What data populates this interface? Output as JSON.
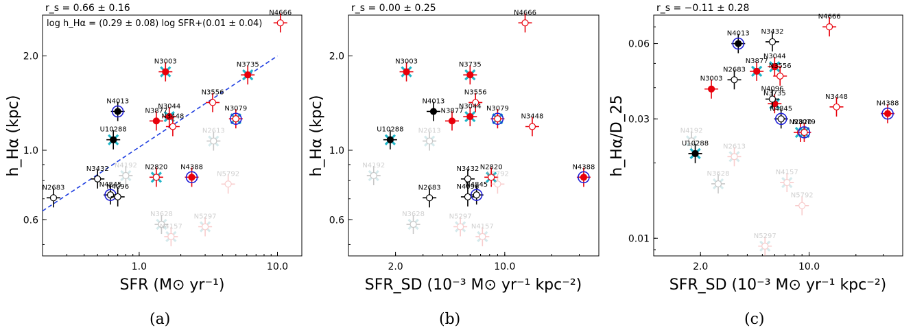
{
  "captions": [
    "(a)",
    "(b)",
    "(c)"
  ],
  "colors": {
    "red": "#e8000b",
    "black": "#000000",
    "blue": "#1f1fd6",
    "cyan": "#1fb5c8",
    "fit_line": "#1f3fe0",
    "faint_gray": "#9a9a9a",
    "faint_red": "#f4a3a3"
  },
  "chart_data": [
    {
      "type": "scatter",
      "panel": "a",
      "stat": "r_s = 0.66 ± 0.16",
      "fit_text": "log h_Hα = (0.29 ± 0.08) log SFR+(0.01 ± 0.04)",
      "fit_line": {
        "x": [
          0.2,
          10.0
        ],
        "y": [
          0.64,
          2.0
        ]
      },
      "xlabel": "SFR (M⊙ yr⁻¹)",
      "ylabel": "h_Hα (kpc)",
      "xscale": "log",
      "yscale": "log",
      "xlim": [
        0.2,
        15.0
      ],
      "ylim": [
        0.46,
        2.7
      ],
      "xticks": [
        {
          "v": 1.0,
          "label": "1.0"
        },
        {
          "v": 10.0,
          "label": "10.0"
        }
      ],
      "yticks": [
        {
          "v": 0.6,
          "label": "0.6"
        },
        {
          "v": 1.0,
          "label": "1.0"
        },
        {
          "v": 2.0,
          "label": "2.0"
        }
      ],
      "points": [
        {
          "name": "N4666",
          "x": 10.5,
          "y": 2.55,
          "c": "red",
          "m": "open",
          "faint": false
        },
        {
          "name": "N3003",
          "x": 1.55,
          "y": 1.78,
          "c": "red",
          "m": "fill",
          "x2": true,
          "faint": false
        },
        {
          "name": "N3735",
          "x": 6.1,
          "y": 1.74,
          "c": "red",
          "m": "fill",
          "x2": true,
          "faint": false
        },
        {
          "name": "N3556",
          "x": 3.4,
          "y": 1.42,
          "c": "red",
          "m": "open",
          "faint": false
        },
        {
          "name": "N4013",
          "x": 0.7,
          "y": 1.33,
          "c": "black",
          "m": "fill",
          "ring": "blue",
          "faint": false
        },
        {
          "name": "N3044",
          "x": 1.65,
          "y": 1.28,
          "c": "red",
          "m": "fill",
          "x2": true,
          "faint": false
        },
        {
          "name": "N3079",
          "x": 5.0,
          "y": 1.26,
          "c": "red",
          "m": "open",
          "ring": "blue",
          "x2": true,
          "faint": false
        },
        {
          "name": "N3877",
          "x": 1.33,
          "y": 1.24,
          "c": "red",
          "m": "fill",
          "faint": false
        },
        {
          "name": "N3448",
          "x": 1.75,
          "y": 1.19,
          "c": "red",
          "m": "open",
          "faint": false
        },
        {
          "name": "U10288",
          "x": 0.65,
          "y": 1.08,
          "c": "black",
          "m": "fill",
          "x2": true,
          "faint": false
        },
        {
          "name": "N2613",
          "x": 3.45,
          "y": 1.07,
          "c": "gray",
          "m": "open",
          "x2": true,
          "faint": true
        },
        {
          "name": "N4192",
          "x": 0.8,
          "y": 0.83,
          "c": "gray",
          "m": "open",
          "x2": true,
          "faint": true
        },
        {
          "name": "N3432",
          "x": 0.5,
          "y": 0.81,
          "c": "black",
          "m": "open",
          "faint": false
        },
        {
          "name": "N2820",
          "x": 1.33,
          "y": 0.82,
          "c": "red",
          "m": "open",
          "x2": true,
          "faint": false
        },
        {
          "name": "N4388",
          "x": 2.4,
          "y": 0.82,
          "c": "red",
          "m": "fill",
          "ring": "blue",
          "faint": false
        },
        {
          "name": "N5792",
          "x": 4.4,
          "y": 0.78,
          "c": "pink",
          "m": "open",
          "faint": true
        },
        {
          "name": "N4845",
          "x": 0.62,
          "y": 0.72,
          "c": "black",
          "m": "open",
          "ring": "blue",
          "faint": false
        },
        {
          "name": "N4096",
          "x": 0.7,
          "y": 0.71,
          "c": "black",
          "m": "open",
          "faint": false
        },
        {
          "name": "N2683",
          "x": 0.24,
          "y": 0.705,
          "c": "black",
          "m": "open",
          "faint": false
        },
        {
          "name": "N3628",
          "x": 1.45,
          "y": 0.58,
          "c": "gray",
          "m": "open",
          "x2": true,
          "faint": true
        },
        {
          "name": "N5297",
          "x": 3.0,
          "y": 0.57,
          "c": "pink",
          "m": "open",
          "x2": true,
          "faint": true
        },
        {
          "name": "N4157",
          "x": 1.7,
          "y": 0.53,
          "c": "pink",
          "m": "open",
          "x2": true,
          "faint": true
        }
      ]
    },
    {
      "type": "scatter",
      "panel": "b",
      "stat": "r_s = 0.00 ± 0.25",
      "xlabel": "SFR_SD (10⁻³ M⊙ yr⁻¹ kpc⁻²)",
      "ylabel": "h_Hα (kpc)",
      "xscale": "log",
      "yscale": "log",
      "xlim": [
        1.0,
        40.0
      ],
      "ylim": [
        0.46,
        2.7
      ],
      "xticks": [
        {
          "v": 2.0,
          "label": "2.0"
        },
        {
          "v": 10.0,
          "label": "10.0"
        }
      ],
      "yticks": [
        {
          "v": 0.6,
          "label": "0.6"
        },
        {
          "v": 1.0,
          "label": "1.0"
        },
        {
          "v": 2.0,
          "label": "2.0"
        }
      ],
      "points": [
        {
          "name": "N4666",
          "x": 13.5,
          "y": 2.55,
          "c": "red",
          "m": "open",
          "faint": false
        },
        {
          "name": "N3003",
          "x": 2.35,
          "y": 1.78,
          "c": "red",
          "m": "fill",
          "x2": true,
          "faint": false
        },
        {
          "name": "N3735",
          "x": 6.0,
          "y": 1.74,
          "c": "red",
          "m": "fill",
          "x2": true,
          "faint": false
        },
        {
          "name": "N3556",
          "x": 6.5,
          "y": 1.42,
          "c": "red",
          "m": "open",
          "faint": false
        },
        {
          "name": "N4013",
          "x": 3.5,
          "y": 1.33,
          "c": "black",
          "m": "fill",
          "faint": false
        },
        {
          "name": "N3877",
          "x": 4.6,
          "y": 1.24,
          "c": "red",
          "m": "fill",
          "faint": false
        },
        {
          "name": "N3044",
          "x": 6.0,
          "y": 1.28,
          "c": "red",
          "m": "fill",
          "x2": true,
          "faint": false
        },
        {
          "name": "N3079",
          "x": 9.0,
          "y": 1.26,
          "c": "red",
          "m": "open",
          "ring": "blue",
          "x2": true,
          "faint": false
        },
        {
          "name": "N3448",
          "x": 15.0,
          "y": 1.19,
          "c": "red",
          "m": "open",
          "faint": false
        },
        {
          "name": "U10288",
          "x": 1.85,
          "y": 1.08,
          "c": "black",
          "m": "fill",
          "x2": true,
          "faint": false
        },
        {
          "name": "N2613",
          "x": 3.3,
          "y": 1.07,
          "c": "gray",
          "m": "open",
          "x2": true,
          "faint": true
        },
        {
          "name": "N4192",
          "x": 1.45,
          "y": 0.83,
          "c": "gray",
          "m": "open",
          "x2": true,
          "faint": true
        },
        {
          "name": "N3432",
          "x": 5.8,
          "y": 0.81,
          "c": "black",
          "m": "open",
          "faint": false
        },
        {
          "name": "N2820",
          "x": 8.2,
          "y": 0.82,
          "c": "red",
          "m": "open",
          "x2": true,
          "faint": false
        },
        {
          "name": "N5792",
          "x": 9.0,
          "y": 0.78,
          "c": "pink",
          "m": "open",
          "faint": true
        },
        {
          "name": "N4388",
          "x": 32.0,
          "y": 0.82,
          "c": "red",
          "m": "fill",
          "ring": "blue",
          "faint": false
        },
        {
          "name": "N4096",
          "x": 5.8,
          "y": 0.71,
          "c": "black",
          "m": "open",
          "faint": false
        },
        {
          "name": "N4845",
          "x": 6.6,
          "y": 0.72,
          "c": "black",
          "m": "open",
          "ring": "blue",
          "faint": false
        },
        {
          "name": "N2683",
          "x": 3.3,
          "y": 0.705,
          "c": "black",
          "m": "open",
          "faint": false
        },
        {
          "name": "N3628",
          "x": 2.6,
          "y": 0.58,
          "c": "gray",
          "m": "open",
          "x2": true,
          "faint": true
        },
        {
          "name": "N5297",
          "x": 5.2,
          "y": 0.57,
          "c": "pink",
          "m": "open",
          "x2": true,
          "faint": true
        },
        {
          "name": "N4157",
          "x": 7.2,
          "y": 0.53,
          "c": "pink",
          "m": "open",
          "x2": true,
          "faint": true
        }
      ]
    },
    {
      "type": "scatter",
      "panel": "c",
      "stat": "r_s = −0.11 ± 0.28",
      "xlabel": "SFR_SD (10⁻³ M⊙ yr⁻¹ kpc⁻²)",
      "ylabel": "h_Hα/D_25",
      "xscale": "log",
      "yscale": "log",
      "xlim": [
        1.0,
        40.0
      ],
      "ylim": [
        0.0085,
        0.078
      ],
      "xticks": [
        {
          "v": 2.0,
          "label": "2.0"
        },
        {
          "v": 10.0,
          "label": "10.0"
        }
      ],
      "yticks": [
        {
          "v": 0.01,
          "label": "0.01"
        },
        {
          "v": 0.03,
          "label": "0.03"
        },
        {
          "v": 0.06,
          "label": "0.06"
        }
      ],
      "points": [
        {
          "name": "N4666",
          "x": 13.5,
          "y": 0.07,
          "c": "red",
          "m": "open",
          "faint": false
        },
        {
          "name": "N4013",
          "x": 3.5,
          "y": 0.06,
          "c": "black",
          "m": "fill",
          "ring": "blue",
          "faint": false
        },
        {
          "name": "N3432",
          "x": 5.8,
          "y": 0.061,
          "c": "black",
          "m": "open",
          "faint": false
        },
        {
          "name": "N3877",
          "x": 4.6,
          "y": 0.0465,
          "c": "red",
          "m": "fill",
          "x2": true,
          "faint": false
        },
        {
          "name": "N3044",
          "x": 6.0,
          "y": 0.0485,
          "c": "red",
          "m": "fill",
          "x2": true,
          "faint": false
        },
        {
          "name": "N3556",
          "x": 6.5,
          "y": 0.0445,
          "c": "red",
          "m": "open",
          "faint": false
        },
        {
          "name": "N2683",
          "x": 3.3,
          "y": 0.043,
          "c": "black",
          "m": "open",
          "faint": false
        },
        {
          "name": "N3003",
          "x": 2.35,
          "y": 0.0395,
          "c": "red",
          "m": "fill",
          "faint": false
        },
        {
          "name": "N3735",
          "x": 6.0,
          "y": 0.0345,
          "c": "red",
          "m": "fill",
          "x2": true,
          "faint": false
        },
        {
          "name": "N4096",
          "x": 5.8,
          "y": 0.036,
          "c": "black",
          "m": "open",
          "faint": false
        },
        {
          "name": "N3448",
          "x": 15.0,
          "y": 0.0335,
          "c": "red",
          "m": "open",
          "faint": false
        },
        {
          "name": "N4388",
          "x": 32.0,
          "y": 0.0315,
          "c": "red",
          "m": "fill",
          "ring": "blue",
          "faint": false
        },
        {
          "name": "N4845",
          "x": 6.6,
          "y": 0.03,
          "c": "black",
          "m": "open",
          "ring": "blue",
          "faint": false
        },
        {
          "name": "N2820",
          "x": 8.8,
          "y": 0.0265,
          "c": "red",
          "m": "open",
          "x2": true,
          "faint": false
        },
        {
          "name": "N3079",
          "x": 9.3,
          "y": 0.0265,
          "c": "red",
          "m": "open",
          "ring": "blue",
          "x2": true,
          "faint": false
        },
        {
          "name": "N4192",
          "x": 1.75,
          "y": 0.0245,
          "c": "gray",
          "m": "open",
          "x2": true,
          "faint": true
        },
        {
          "name": "U10288",
          "x": 1.85,
          "y": 0.0218,
          "c": "black",
          "m": "fill",
          "x2": true,
          "faint": false
        },
        {
          "name": "N2613",
          "x": 3.3,
          "y": 0.0212,
          "c": "pink",
          "m": "open",
          "x2": true,
          "faint": true
        },
        {
          "name": "N3628",
          "x": 2.6,
          "y": 0.0165,
          "c": "gray",
          "m": "open",
          "x2": true,
          "faint": true
        },
        {
          "name": "N4157",
          "x": 7.2,
          "y": 0.0167,
          "c": "pink",
          "m": "open",
          "x2": true,
          "faint": true
        },
        {
          "name": "N5792",
          "x": 9.0,
          "y": 0.0135,
          "c": "pink",
          "m": "open",
          "faint": true
        },
        {
          "name": "N5297",
          "x": 5.2,
          "y": 0.0093,
          "c": "pink",
          "m": "open",
          "x2": true,
          "faint": true
        }
      ]
    }
  ]
}
